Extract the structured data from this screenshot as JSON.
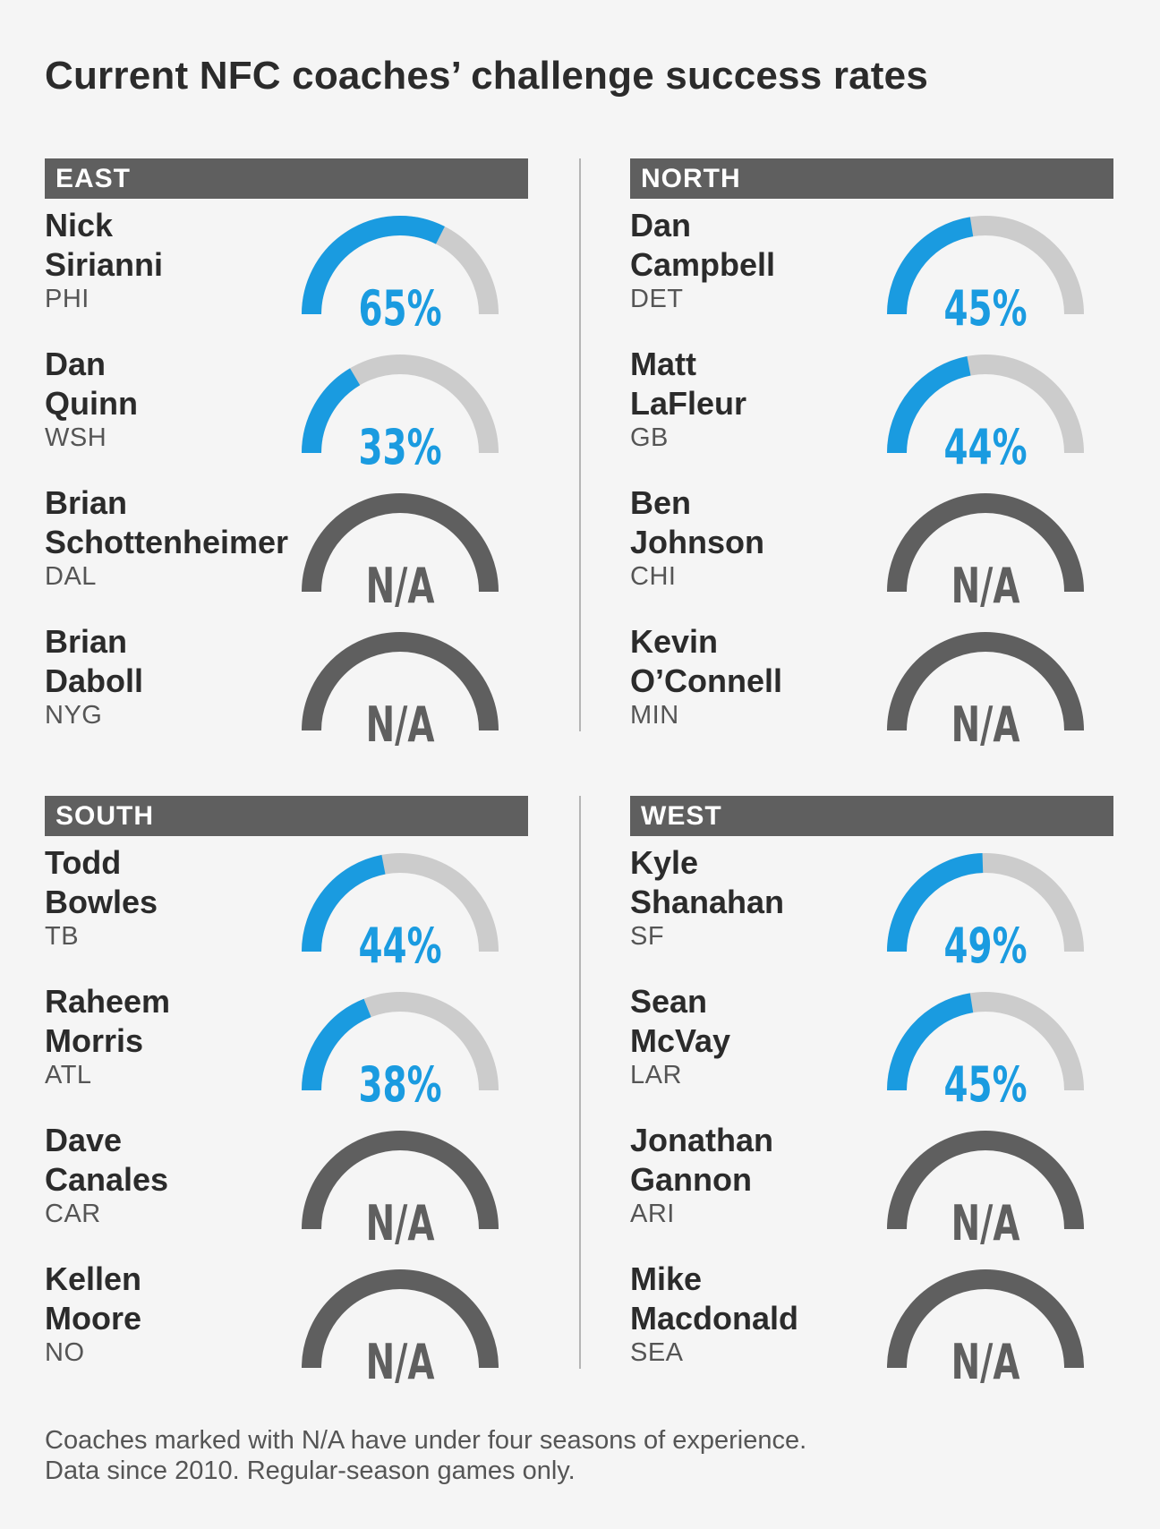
{
  "title": "Current NFC coaches’ challenge success rates",
  "colors": {
    "rate_arc": "#1a9be0",
    "rate_track": "#cccccc",
    "na_arc": "#5f5f5f",
    "header_bg": "#5f5f5f"
  },
  "chart_data": {
    "type": "gauge",
    "unit": "%",
    "divisions": [
      {
        "name": "EAST",
        "coaches": [
          {
            "first": "Nick",
            "last": "Sirianni",
            "team": "PHI",
            "rate": 65,
            "label": "65%"
          },
          {
            "first": "Dan",
            "last": "Quinn",
            "team": "WSH",
            "rate": 33,
            "label": "33%"
          },
          {
            "first": "Brian",
            "last": "Schottenheimer",
            "team": "DAL",
            "rate": null,
            "label": "N/A"
          },
          {
            "first": "Brian",
            "last": "Daboll",
            "team": "NYG",
            "rate": null,
            "label": "N/A"
          }
        ]
      },
      {
        "name": "NORTH",
        "coaches": [
          {
            "first": "Dan",
            "last": "Campbell",
            "team": "DET",
            "rate": 45,
            "label": "45%"
          },
          {
            "first": "Matt",
            "last": "LaFleur",
            "team": "GB",
            "rate": 44,
            "label": "44%"
          },
          {
            "first": "Ben",
            "last": "Johnson",
            "team": "CHI",
            "rate": null,
            "label": "N/A"
          },
          {
            "first": "Kevin",
            "last": "O’Connell",
            "team": "MIN",
            "rate": null,
            "label": "N/A"
          }
        ]
      },
      {
        "name": "SOUTH",
        "coaches": [
          {
            "first": "Todd",
            "last": "Bowles",
            "team": "TB",
            "rate": 44,
            "label": "44%"
          },
          {
            "first": "Raheem",
            "last": "Morris",
            "team": "ATL",
            "rate": 38,
            "label": "38%"
          },
          {
            "first": "Dave",
            "last": "Canales",
            "team": "CAR",
            "rate": null,
            "label": "N/A"
          },
          {
            "first": "Kellen",
            "last": "Moore",
            "team": "NO",
            "rate": null,
            "label": "N/A"
          }
        ]
      },
      {
        "name": "WEST",
        "coaches": [
          {
            "first": "Kyle",
            "last": "Shanahan",
            "team": "SF",
            "rate": 49,
            "label": "49%"
          },
          {
            "first": "Sean",
            "last": "McVay",
            "team": "LAR",
            "rate": 45,
            "label": "45%"
          },
          {
            "first": "Jonathan",
            "last": "Gannon",
            "team": "ARI",
            "rate": null,
            "label": "N/A"
          },
          {
            "first": "Mike",
            "last": "Macdonald",
            "team": "SEA",
            "rate": null,
            "label": "N/A"
          }
        ]
      }
    ]
  },
  "footnote": {
    "line1": "Coaches marked with N/A have under four seasons of experience.",
    "line2": "Data since 2010. Regular-season games only."
  }
}
